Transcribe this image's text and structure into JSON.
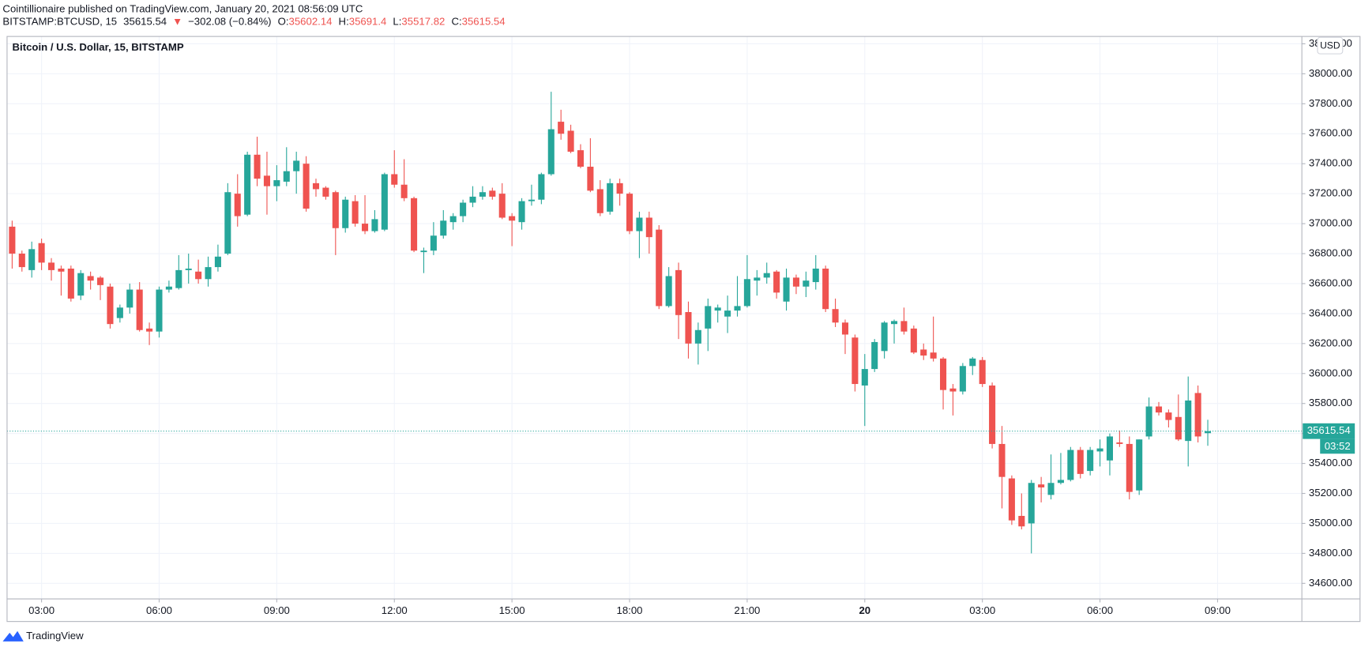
{
  "header": {
    "publisher_line": "Cointillionaire published on TradingView.com, January 20, 2021 08:56:09 UTC",
    "symbol": "BITSTAMP:BTCUSD, 15",
    "arrow": "▼",
    "change": "−302.08 (−0.84%)",
    "o_label": "O:",
    "h_label": "H:",
    "l_label": "L:",
    "c_label": "C:"
  },
  "brand": "TradingView",
  "chart_data": {
    "type": "candlestick",
    "title": "Bitcoin / U.S. Dollar, 15, BITSTAMP",
    "currency": "USD",
    "countdown": "03:52",
    "up_color": "#26a69a",
    "down_color": "#ef5350",
    "grid": true,
    "xlim": [
      2.12,
      35.15
    ],
    "ylim": [
      34496,
      38249
    ],
    "xticks": [
      {
        "value": 3,
        "label": "03:00"
      },
      {
        "value": 6,
        "label": "06:00"
      },
      {
        "value": 9,
        "label": "09:00"
      },
      {
        "value": 12,
        "label": "12:00"
      },
      {
        "value": 15,
        "label": "15:00"
      },
      {
        "value": 18,
        "label": "18:00"
      },
      {
        "value": 21,
        "label": "21:00"
      },
      {
        "value": 24,
        "label": "20"
      },
      {
        "value": 27,
        "label": "03:00"
      },
      {
        "value": 30,
        "label": "06:00"
      },
      {
        "value": 33,
        "label": "09:00"
      }
    ],
    "yticks": [
      {
        "value": 34600,
        "label": "34600.00"
      },
      {
        "value": 34800,
        "label": "34800.00"
      },
      {
        "value": 35000,
        "label": "35000.00"
      },
      {
        "value": 35200,
        "label": "35200.00"
      },
      {
        "value": 35400,
        "label": "35400.00"
      },
      {
        "value": 35600,
        "label": "35600.00"
      },
      {
        "value": 35800,
        "label": "35800.00"
      },
      {
        "value": 36000,
        "label": "36000.00"
      },
      {
        "value": 36200,
        "label": "36200.00"
      },
      {
        "value": 36400,
        "label": "36400.00"
      },
      {
        "value": 36600,
        "label": "36600.00"
      },
      {
        "value": 36800,
        "label": "36800.00"
      },
      {
        "value": 37000,
        "label": "37000.00"
      },
      {
        "value": 37200,
        "label": "37200.00"
      },
      {
        "value": 37400,
        "label": "37400.00"
      },
      {
        "value": 37600,
        "label": "37600.00"
      },
      {
        "value": 37800,
        "label": "37800.00"
      },
      {
        "value": 38000,
        "label": "38000.00"
      },
      {
        "value": 38200,
        "label": "38200.00"
      }
    ],
    "x": [
      2.25,
      2.5,
      2.75,
      3,
      3.25,
      3.5,
      3.75,
      4,
      4.25,
      4.5,
      4.75,
      5,
      5.25,
      5.5,
      5.75,
      6,
      6.25,
      6.5,
      6.75,
      7,
      7.25,
      7.5,
      7.75,
      8,
      8.25,
      8.5,
      8.75,
      9,
      9.25,
      9.5,
      9.75,
      10,
      10.25,
      10.5,
      10.75,
      11,
      11.25,
      11.5,
      11.75,
      12,
      12.25,
      12.5,
      12.75,
      13,
      13.25,
      13.5,
      13.75,
      14,
      14.25,
      14.5,
      14.75,
      15,
      15.25,
      15.5,
      15.75,
      16,
      16.25,
      16.5,
      16.75,
      17,
      17.25,
      17.5,
      17.75,
      18,
      18.25,
      18.5,
      18.75,
      19,
      19.25,
      19.5,
      19.75,
      20,
      20.25,
      20.5,
      20.75,
      21,
      21.25,
      21.5,
      21.75,
      22,
      22.25,
      22.5,
      22.75,
      23,
      23.25,
      23.5,
      23.75,
      24,
      24.25,
      24.5,
      24.75,
      25,
      25.25,
      25.5,
      25.75,
      26,
      26.25,
      26.5,
      26.75,
      27,
      27.25,
      27.5,
      27.75,
      28,
      28.25,
      28.5,
      28.75,
      29,
      29.25,
      29.5,
      29.75,
      30,
      30.25,
      30.5,
      30.75,
      31,
      31.25,
      31.5,
      31.75,
      32,
      32.25,
      32.5,
      32.75
    ],
    "open": [
      36980,
      36800,
      36690,
      36870,
      36740,
      36700,
      36700,
      36520,
      36650,
      36640,
      36580,
      36370,
      36440,
      36560,
      36300,
      36280,
      36560,
      36570,
      36690,
      36680,
      36630,
      36710,
      36800,
      37200,
      37060,
      37460,
      37320,
      37250,
      37280,
      37350,
      37400,
      37270,
      37240,
      37210,
      36970,
      37150,
      37000,
      36950,
      36960,
      37330,
      37260,
      37170,
      36810,
      36820,
      36920,
      37010,
      37050,
      37140,
      37180,
      37220,
      37200,
      37050,
      37010,
      37150,
      37160,
      37330,
      37680,
      37620,
      37490,
      37380,
      37230,
      37080,
      37270,
      37200,
      36950,
      37040,
      36960,
      36450,
      36690,
      36410,
      36200,
      36300,
      36420,
      36380,
      36420,
      36450,
      36620,
      36640,
      36680,
      36480,
      36640,
      36580,
      36610,
      36700,
      36430,
      36340,
      36240,
      35920,
      36030,
      36150,
      36330,
      36350,
      36300,
      36160,
      36140,
      36100,
      35900,
      35880,
      36050,
      36090,
      35920,
      35530,
      35300,
      35050,
      35000,
      35260,
      35190,
      35270,
      35290,
      35490,
      35350,
      35480,
      35420,
      35540,
      35530,
      35220,
      35580,
      35780,
      35740,
      35710,
      35550,
      35870,
      35602.14
    ],
    "high": [
      37020,
      36820,
      36880,
      36900,
      36770,
      36720,
      36720,
      36690,
      36680,
      36650,
      36600,
      36460,
      36600,
      36610,
      36340,
      36580,
      36620,
      36790,
      36800,
      36760,
      36780,
      36860,
      37270,
      37330,
      37480,
      37580,
      37480,
      37390,
      37510,
      37480,
      37450,
      37300,
      37250,
      37220,
      37180,
      37190,
      37190,
      37090,
      37340,
      37490,
      37430,
      37180,
      36840,
      37010,
      37090,
      37070,
      37160,
      37250,
      37250,
      37240,
      37270,
      37070,
      37170,
      37260,
      37340,
      37880,
      37760,
      37660,
      37530,
      37570,
      37290,
      37300,
      37300,
      37210,
      37080,
      37080,
      36990,
      36710,
      36740,
      36480,
      36340,
      36500,
      36460,
      36520,
      36650,
      36790,
      36690,
      36740,
      36690,
      36700,
      36660,
      36680,
      36790,
      36720,
      36500,
      36360,
      36260,
      36130,
      36230,
      36350,
      36360,
      36440,
      36320,
      36200,
      36380,
      36110,
      35930,
      36070,
      36110,
      36110,
      35940,
      35650,
      35320,
      35200,
      35290,
      35310,
      35460,
      35470,
      35510,
      35510,
      35510,
      35560,
      35600,
      35620,
      35580,
      35560,
      35840,
      35810,
      35760,
      35860,
      35980,
      35920,
      35691.4
    ],
    "low": [
      36700,
      36680,
      36640,
      36690,
      36620,
      36520,
      36480,
      36490,
      36560,
      36490,
      36300,
      36340,
      36400,
      36280,
      36190,
      36240,
      36540,
      36560,
      36600,
      36600,
      36580,
      36680,
      36790,
      36980,
      37050,
      37250,
      37060,
      37150,
      37250,
      37200,
      37080,
      37180,
      37160,
      36790,
      36940,
      36980,
      36930,
      36940,
      36950,
      37240,
      37150,
      36810,
      36670,
      36790,
      36900,
      36960,
      37010,
      37110,
      37160,
      37160,
      37030,
      36850,
      36960,
      37120,
      37130,
      37320,
      37560,
      37470,
      37370,
      37210,
      37050,
      37060,
      37120,
      36930,
      36770,
      36800,
      36430,
      36440,
      36230,
      36100,
      36060,
      36150,
      36340,
      36270,
      36380,
      36440,
      36520,
      36600,
      36500,
      36420,
      36530,
      36510,
      36560,
      36410,
      36310,
      36130,
      35880,
      35650,
      36010,
      36100,
      36200,
      36260,
      36130,
      36090,
      36080,
      35760,
      35720,
      35860,
      35990,
      35910,
      35500,
      35100,
      34990,
      34960,
      34800,
      35140,
      35160,
      35260,
      35280,
      35300,
      35320,
      35380,
      35320,
      35510,
      35160,
      35190,
      35560,
      35720,
      35640,
      35550,
      35380,
      35540,
      35517.82
    ],
    "close": [
      36800,
      36710,
      36830,
      36740,
      36690,
      36680,
      36500,
      36670,
      36620,
      36590,
      36330,
      36440,
      36560,
      36290,
      36280,
      36560,
      36580,
      36690,
      36700,
      36630,
      36710,
      36780,
      37210,
      37050,
      37460,
      37300,
      37250,
      37290,
      37350,
      37420,
      37100,
      37230,
      37180,
      36970,
      37160,
      37000,
      36950,
      37030,
      37330,
      37260,
      37170,
      36820,
      36820,
      36920,
      37020,
      37050,
      37140,
      37180,
      37210,
      37180,
      37040,
      37020,
      37150,
      37160,
      37330,
      37630,
      37600,
      37480,
      37380,
      37220,
      37070,
      37270,
      37200,
      36950,
      37040,
      36910,
      36450,
      36650,
      36390,
      36200,
      36290,
      36450,
      36440,
      36420,
      36450,
      36630,
      36640,
      36670,
      36540,
      36640,
      36580,
      36620,
      36700,
      36430,
      36340,
      36260,
      35930,
      36030,
      36210,
      36340,
      36350,
      36280,
      36140,
      36120,
      36100,
      35890,
      35880,
      36050,
      36100,
      35930,
      35530,
      35310,
      35020,
      34980,
      35270,
      35240,
      35270,
      35290,
      35490,
      35330,
      35490,
      35500,
      35580,
      35530,
      35210,
      35560,
      35780,
      35740,
      35690,
      35560,
      35820,
      35580,
      35615.54
    ]
  }
}
